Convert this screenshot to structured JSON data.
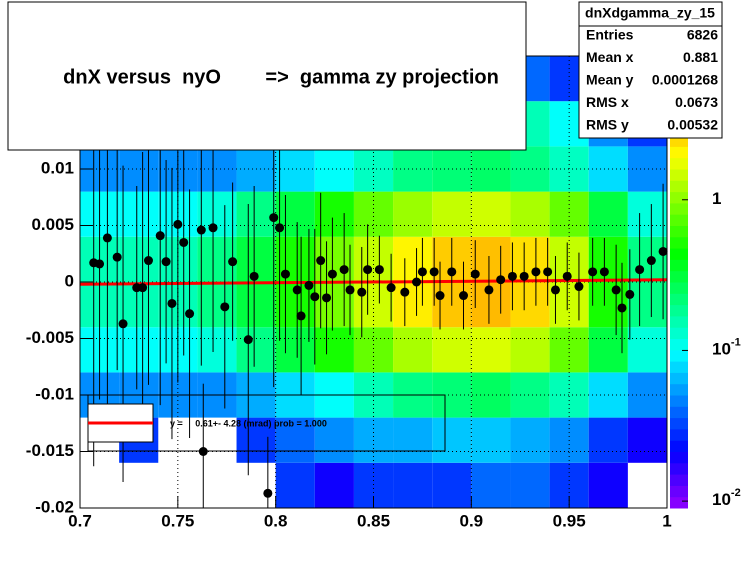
{
  "chart_data": {
    "type": "profile2d",
    "title": "dnX versus  nyO        =>  gamma zy projection",
    "xlim": [
      0.7,
      1.0
    ],
    "ylim": [
      -0.02,
      0.02
    ],
    "xticks": [
      0.7,
      0.75,
      0.8,
      0.85,
      0.9,
      0.95,
      1
    ],
    "yticks": [
      -0.02,
      -0.015,
      -0.01,
      -0.005,
      0,
      0.005,
      0.01
    ],
    "grid": true,
    "heatmap": {
      "xbins": [
        0.7,
        0.72,
        0.74,
        0.76,
        0.78,
        0.8,
        0.82,
        0.84,
        0.86,
        0.88,
        0.9,
        0.92,
        0.94,
        0.96,
        0.98,
        1.0
      ],
      "ybins": [
        -0.02,
        -0.016,
        -0.012,
        -0.008,
        -0.004,
        0,
        0.004,
        0.008,
        0.012,
        0.016,
        0.02
      ],
      "z": [
        [
          0,
          0,
          0,
          0,
          0,
          0.03,
          0.02,
          0.03,
          0.03,
          0.03,
          0.04,
          0.04,
          0.03,
          0.02,
          0
        ],
        [
          0,
          0.03,
          0,
          0,
          0.03,
          0.04,
          0.05,
          0.06,
          0.06,
          0.07,
          0.07,
          0.06,
          0.05,
          0.03,
          0.02
        ],
        [
          0.05,
          0.05,
          0.05,
          0.05,
          0.06,
          0.08,
          0.1,
          0.15,
          0.2,
          0.22,
          0.25,
          0.2,
          0.15,
          0.08,
          0.05
        ],
        [
          0.1,
          0.1,
          0.1,
          0.12,
          0.2,
          0.3,
          0.5,
          0.8,
          1.2,
          1.5,
          1.6,
          1.3,
          0.8,
          0.3,
          0.12
        ],
        [
          0.15,
          0.15,
          0.15,
          0.2,
          0.3,
          0.5,
          0.9,
          1.5,
          2.2,
          2.8,
          3,
          2.5,
          1.5,
          0.5,
          0.2
        ],
        [
          0.15,
          0.15,
          0.15,
          0.2,
          0.3,
          0.5,
          0.9,
          1.4,
          2.1,
          2.7,
          2.9,
          2.4,
          1.4,
          0.5,
          0.2
        ],
        [
          0.1,
          0.1,
          0.1,
          0.12,
          0.2,
          0.3,
          0.5,
          0.8,
          1.1,
          1.4,
          1.5,
          1.2,
          0.8,
          0.3,
          0.12
        ],
        [
          0.05,
          0.05,
          0.05,
          0.05,
          0.06,
          0.08,
          0.1,
          0.14,
          0.2,
          0.22,
          0.24,
          0.2,
          0.14,
          0.08,
          0.05
        ],
        [
          0.03,
          0.04,
          0.05,
          0.06,
          0.08,
          0.1,
          0.12,
          0.15,
          0.18,
          0.2,
          0.2,
          0.15,
          0.1,
          0.05,
          0.03
        ],
        [
          0,
          0,
          0,
          0.03,
          0.04,
          0.05,
          0.06,
          0.06,
          0.06,
          0.06,
          0.05,
          0.04,
          0.03,
          0,
          0
        ]
      ]
    },
    "zlim": [
      0.009,
      9
    ],
    "zticks": [
      1,
      {
        "value": 0.1,
        "label": "10",
        "exponent": "-1"
      },
      {
        "value": 0.01,
        "label": "10",
        "exponent": "-2"
      }
    ],
    "log_z": true,
    "points": {
      "x": [
        0.707,
        0.71,
        0.714,
        0.719,
        0.722,
        0.729,
        0.732,
        0.735,
        0.741,
        0.744,
        0.747,
        0.75,
        0.753,
        0.756,
        0.762,
        0.763,
        0.768,
        0.774,
        0.778,
        0.786,
        0.789,
        0.796,
        0.799,
        0.802,
        0.805,
        0.811,
        0.813,
        0.817,
        0.82,
        0.823,
        0.826,
        0.829,
        0.835,
        0.838,
        0.844,
        0.847,
        0.853,
        0.859,
        0.866,
        0.872,
        0.875,
        0.881,
        0.884,
        0.89,
        0.896,
        0.902,
        0.909,
        0.915,
        0.921,
        0.927,
        0.933,
        0.939,
        0.943,
        0.949,
        0.955,
        0.962,
        0.968,
        0.974,
        0.977,
        0.981,
        0.986,
        0.992,
        0.998
      ],
      "y": [
        0.0017,
        0.0016,
        0.0039,
        0.0022,
        -0.0037,
        -0.0005,
        -0.0005,
        0.0019,
        0.0041,
        0.0018,
        -0.0019,
        0.0051,
        0.0035,
        -0.0028,
        0.0046,
        -0.015,
        0.0048,
        -0.0022,
        0.0018,
        -0.0051,
        0.0005,
        -0.0187,
        0.0057,
        0.0048,
        0.0007,
        -0.0007,
        -0.003,
        -0.0003,
        -0.0013,
        0.0019,
        -0.0014,
        0.0007,
        0.0011,
        -0.0007,
        -0.0009,
        0.0011,
        0.0011,
        -0.0005,
        -0.0009,
        0,
        0.0009,
        0.0009,
        -0.0012,
        0.0009,
        -0.0012,
        0.0007,
        -0.0007,
        0.0002,
        0.0005,
        0.0005,
        0.0009,
        0.0009,
        -0.0007,
        0.0005,
        -0.0004,
        0.0009,
        0.0009,
        -0.0007,
        -0.0023,
        -0.0011,
        0.0011,
        0.0019,
        0.0027
      ],
      "err": [
        0.018,
        0.012,
        0.016,
        0.01,
        0.014,
        0.009,
        0.012,
        0.011,
        0.015,
        0.009,
        0.012,
        0.014,
        0.01,
        0.011,
        0.012,
        0.006,
        0.011,
        0.009,
        0.007,
        0.012,
        0.008,
        0.005,
        0.015,
        0.01,
        0.007,
        0.006,
        0.007,
        0.005,
        0.006,
        0.006,
        0.005,
        0.005,
        0.005,
        0.004,
        0.004,
        0.004,
        0.003,
        0.003,
        0.003,
        0.003,
        0.003,
        0.003,
        0.003,
        0.003,
        0.003,
        0.003,
        0.003,
        0.003,
        0.003,
        0.003,
        0.003,
        0.003,
        0.003,
        0.003,
        0.003,
        0.003,
        0.003,
        0.004,
        0.004,
        0.004,
        0.005,
        0.005,
        0.006
      ]
    },
    "fit": {
      "x": [
        0.7,
        1.0
      ],
      "y": [
        -0.0002,
        0.0002
      ],
      "color": "#ff0000"
    },
    "legend": {
      "text": "y =     0.61+- 4.28 (mrad) prob = 1.000"
    },
    "stats": {
      "name": "dnXdgamma_zy_15",
      "rows": [
        [
          "Entries",
          "6826"
        ],
        [
          "Mean x",
          "0.881"
        ],
        [
          "Mean y",
          "0.0001268"
        ],
        [
          "RMS x",
          "0.0673"
        ],
        [
          "RMS y",
          "0.00532"
        ]
      ]
    }
  }
}
